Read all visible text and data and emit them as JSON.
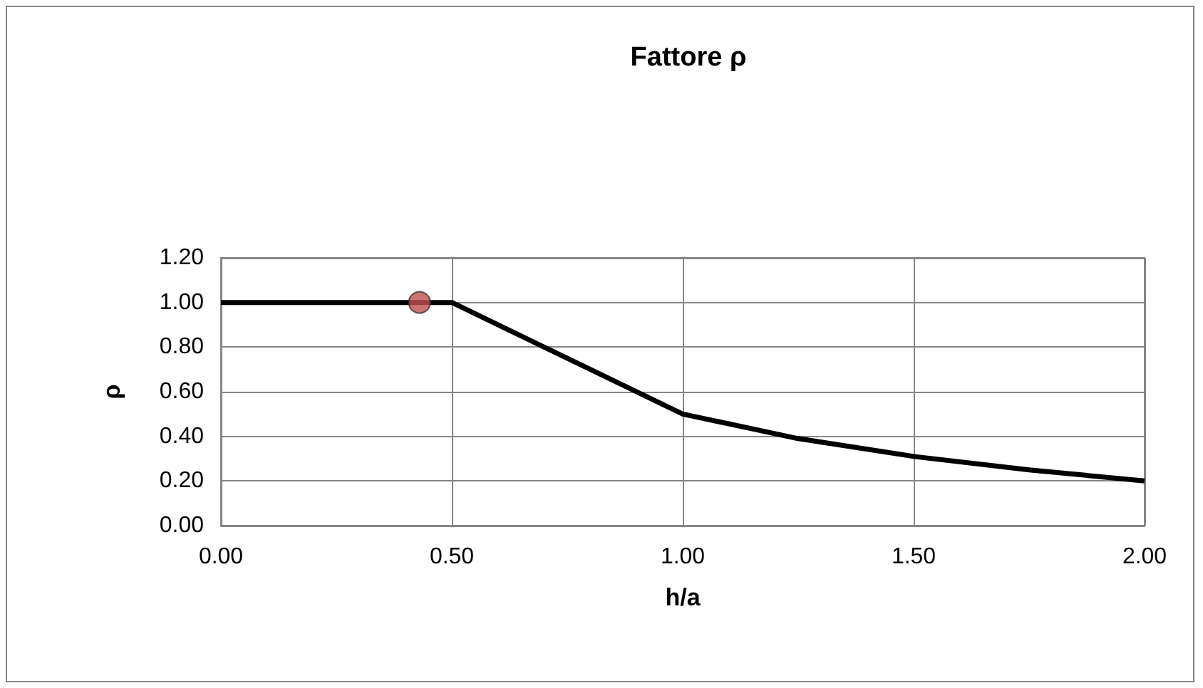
{
  "chart_data": {
    "type": "line",
    "title": "Fattore ρ",
    "xlabel": "h/a",
    "ylabel": "ρ",
    "series": [
      {
        "color": "#000000",
        "marker": "none",
        "x": [
          0,
          0.5,
          1,
          1.25,
          1.5,
          1.75,
          2
        ],
        "values": [
          1,
          1,
          0.5,
          0.39,
          0.31,
          0.25,
          0.2
        ]
      },
      {
        "type": "scatter",
        "color": "#c0504d",
        "marker": "circle",
        "x": [
          0.43
        ],
        "values": [
          1
        ]
      }
    ],
    "xlim": [
      0,
      2
    ],
    "xticks": [
      {
        "value": 0,
        "label": "0.00"
      },
      {
        "value": 0.5,
        "label": "0.50"
      },
      {
        "value": 1,
        "label": "1.00"
      },
      {
        "value": 1.5,
        "label": "1.50"
      },
      {
        "value": 2,
        "label": "2.00"
      }
    ],
    "ylim": [
      0,
      1.2
    ],
    "yticks": [
      {
        "value": 0,
        "label": "0.00"
      },
      {
        "value": 0.2,
        "label": "0.20"
      },
      {
        "value": 0.4,
        "label": "0.40"
      },
      {
        "value": 0.6,
        "label": "0.60"
      },
      {
        "value": 0.8,
        "label": "0.80"
      },
      {
        "value": 1,
        "label": "1.00"
      },
      {
        "value": 1.2,
        "label": "1.20"
      }
    ],
    "grid": true
  }
}
